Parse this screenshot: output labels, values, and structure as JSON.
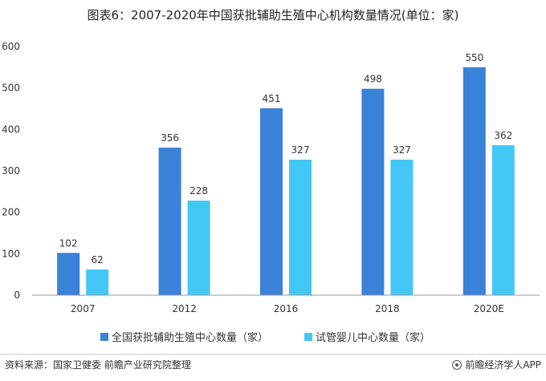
{
  "title": "图表6：2007-2020年中国获批辅助生殖中心机构数量情况(单位：家)",
  "source": "资料来源：国家卫健委 前瞻产业研究院整理",
  "brand": "前瞻经济学人APP",
  "colors": {
    "series1": "#3a81d8",
    "series2": "#43c8f5",
    "axis": "#999999"
  },
  "chart_data": {
    "type": "bar",
    "categories": [
      "2007",
      "2012",
      "2016",
      "2018",
      "2020E"
    ],
    "series": [
      {
        "name": "全国获批辅助生殖中心数量（家）",
        "values": [
          102,
          356,
          451,
          498,
          550
        ]
      },
      {
        "name": "试管婴儿中心数量（家）",
        "values": [
          62,
          228,
          327,
          327,
          362
        ]
      }
    ],
    "ylim": [
      0,
      600
    ],
    "yticks": [
      "0",
      "100",
      "200",
      "300",
      "400",
      "500",
      "600"
    ],
    "grid": false,
    "legend": "bottom"
  }
}
